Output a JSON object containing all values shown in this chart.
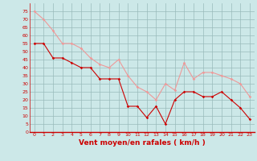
{
  "x": [
    0,
    1,
    2,
    3,
    4,
    5,
    6,
    7,
    8,
    9,
    10,
    11,
    12,
    13,
    14,
    15,
    16,
    17,
    18,
    19,
    20,
    21,
    22,
    23
  ],
  "wind_avg": [
    55,
    55,
    46,
    46,
    43,
    40,
    40,
    33,
    33,
    33,
    16,
    16,
    9,
    16,
    5,
    20,
    25,
    25,
    22,
    22,
    25,
    20,
    15,
    8
  ],
  "wind_gust": [
    75,
    70,
    63,
    55,
    55,
    52,
    46,
    42,
    40,
    45,
    35,
    28,
    25,
    20,
    30,
    26,
    43,
    33,
    37,
    37,
    35,
    33,
    30,
    22
  ],
  "bg_color": "#cce8e8",
  "grid_color": "#99bbbb",
  "line_avg_color": "#cc0000",
  "line_gust_color": "#ee9999",
  "marker_avg_color": "#cc0000",
  "marker_gust_color": "#ee9999",
  "xlabel": "Vent moyen/en rafales ( km/h )",
  "ylim": [
    0,
    80
  ],
  "yticks": [
    0,
    5,
    10,
    15,
    20,
    25,
    30,
    35,
    40,
    45,
    50,
    55,
    60,
    65,
    70,
    75
  ],
  "xlim": [
    -0.5,
    23.5
  ],
  "xticks": [
    0,
    1,
    2,
    3,
    4,
    5,
    6,
    7,
    8,
    9,
    10,
    11,
    12,
    13,
    14,
    15,
    16,
    17,
    18,
    19,
    20,
    21,
    22,
    23
  ],
  "font_color": "#cc0000",
  "tick_label_size": 4.5,
  "xlabel_size": 6.5,
  "axis_line_color": "#cc0000"
}
